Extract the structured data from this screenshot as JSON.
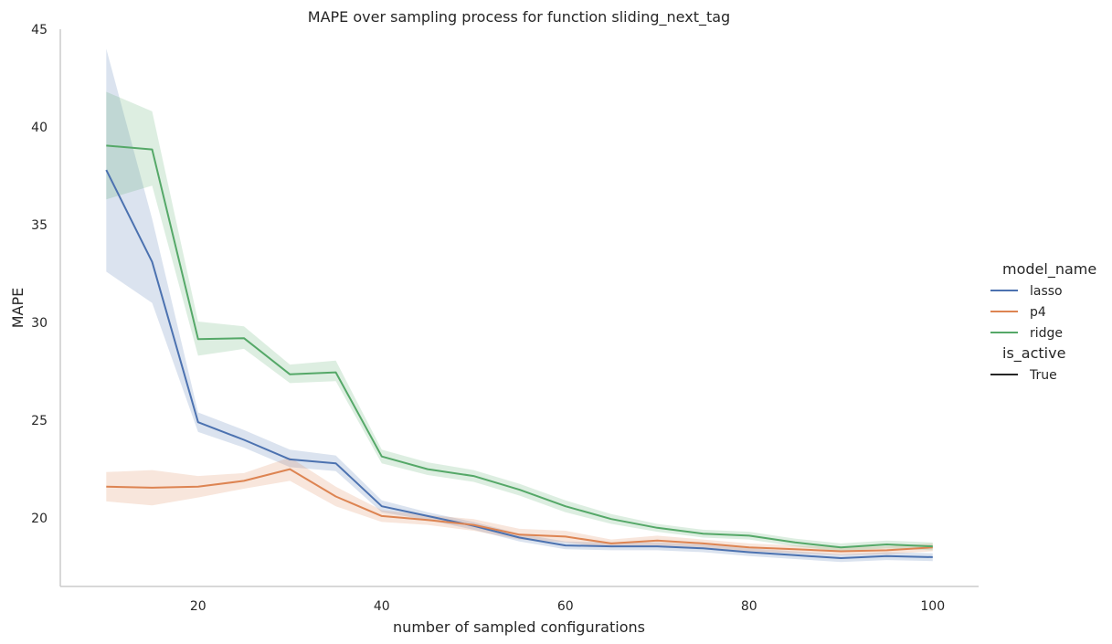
{
  "chart_data": {
    "type": "line",
    "title": "MAPE over sampling process for function sliding_next_tag",
    "xlabel": "number of sampled configurations",
    "ylabel": "MAPE",
    "xlim": [
      5,
      105
    ],
    "ylim": [
      16.5,
      45
    ],
    "xticks": [
      20,
      40,
      60,
      80,
      100
    ],
    "yticks": [
      20,
      25,
      30,
      35,
      40,
      45
    ],
    "grid": false,
    "legend_position": "right",
    "x": [
      10,
      15,
      20,
      25,
      30,
      35,
      40,
      45,
      50,
      55,
      60,
      65,
      70,
      75,
      80,
      85,
      90,
      95,
      100
    ],
    "series": [
      {
        "name": "lasso",
        "color": "#4c72b0",
        "values": [
          37.8,
          33.1,
          24.9,
          24.0,
          23.0,
          22.8,
          20.6,
          20.1,
          19.6,
          19.0,
          18.6,
          18.55,
          18.55,
          18.45,
          18.25,
          18.1,
          17.95,
          18.05,
          18.0
        ],
        "ci_low": [
          32.6,
          31.0,
          24.4,
          23.6,
          22.6,
          22.4,
          20.3,
          19.9,
          19.4,
          18.8,
          18.4,
          18.35,
          18.35,
          18.25,
          18.05,
          17.9,
          17.75,
          17.85,
          17.8
        ],
        "ci_high": [
          44.0,
          35.3,
          25.4,
          24.5,
          23.5,
          23.2,
          20.9,
          20.3,
          19.8,
          19.2,
          18.8,
          18.75,
          18.75,
          18.65,
          18.45,
          18.3,
          18.15,
          18.25,
          18.2
        ]
      },
      {
        "name": "p4",
        "color": "#dd8452",
        "values": [
          21.6,
          21.55,
          21.6,
          21.9,
          22.5,
          21.1,
          20.1,
          19.9,
          19.65,
          19.15,
          19.05,
          18.7,
          18.85,
          18.7,
          18.5,
          18.4,
          18.3,
          18.35,
          18.5
        ],
        "ci_low": [
          20.85,
          20.65,
          21.05,
          21.5,
          21.9,
          20.6,
          19.8,
          19.65,
          19.35,
          18.9,
          18.75,
          18.5,
          18.6,
          18.5,
          18.3,
          18.2,
          18.1,
          18.15,
          18.3
        ],
        "ci_high": [
          22.35,
          22.45,
          22.15,
          22.3,
          23.1,
          21.6,
          20.4,
          20.15,
          19.95,
          19.45,
          19.35,
          18.9,
          19.1,
          18.9,
          18.7,
          18.6,
          18.5,
          18.55,
          18.7
        ]
      },
      {
        "name": "ridge",
        "color": "#55a868",
        "values": [
          39.05,
          38.85,
          29.15,
          29.2,
          27.35,
          27.45,
          23.15,
          22.5,
          22.15,
          21.45,
          20.6,
          19.95,
          19.5,
          19.2,
          19.1,
          18.75,
          18.5,
          18.65,
          18.55
        ],
        "ci_low": [
          36.3,
          37.0,
          28.3,
          28.65,
          26.9,
          27.0,
          22.8,
          22.2,
          21.85,
          21.15,
          20.3,
          19.7,
          19.3,
          19.0,
          18.9,
          18.55,
          18.3,
          18.45,
          18.35
        ],
        "ci_high": [
          41.8,
          40.8,
          30.05,
          29.8,
          27.85,
          28.05,
          23.5,
          22.85,
          22.45,
          21.75,
          20.9,
          20.2,
          19.7,
          19.4,
          19.3,
          18.95,
          18.7,
          18.85,
          18.75
        ]
      }
    ],
    "legend": {
      "hue_title": "model_name",
      "hue_entries": [
        "lasso",
        "p4",
        "ridge"
      ],
      "style_title": "is_active",
      "style_entries": [
        "True"
      ],
      "style_color": "#262626"
    }
  }
}
